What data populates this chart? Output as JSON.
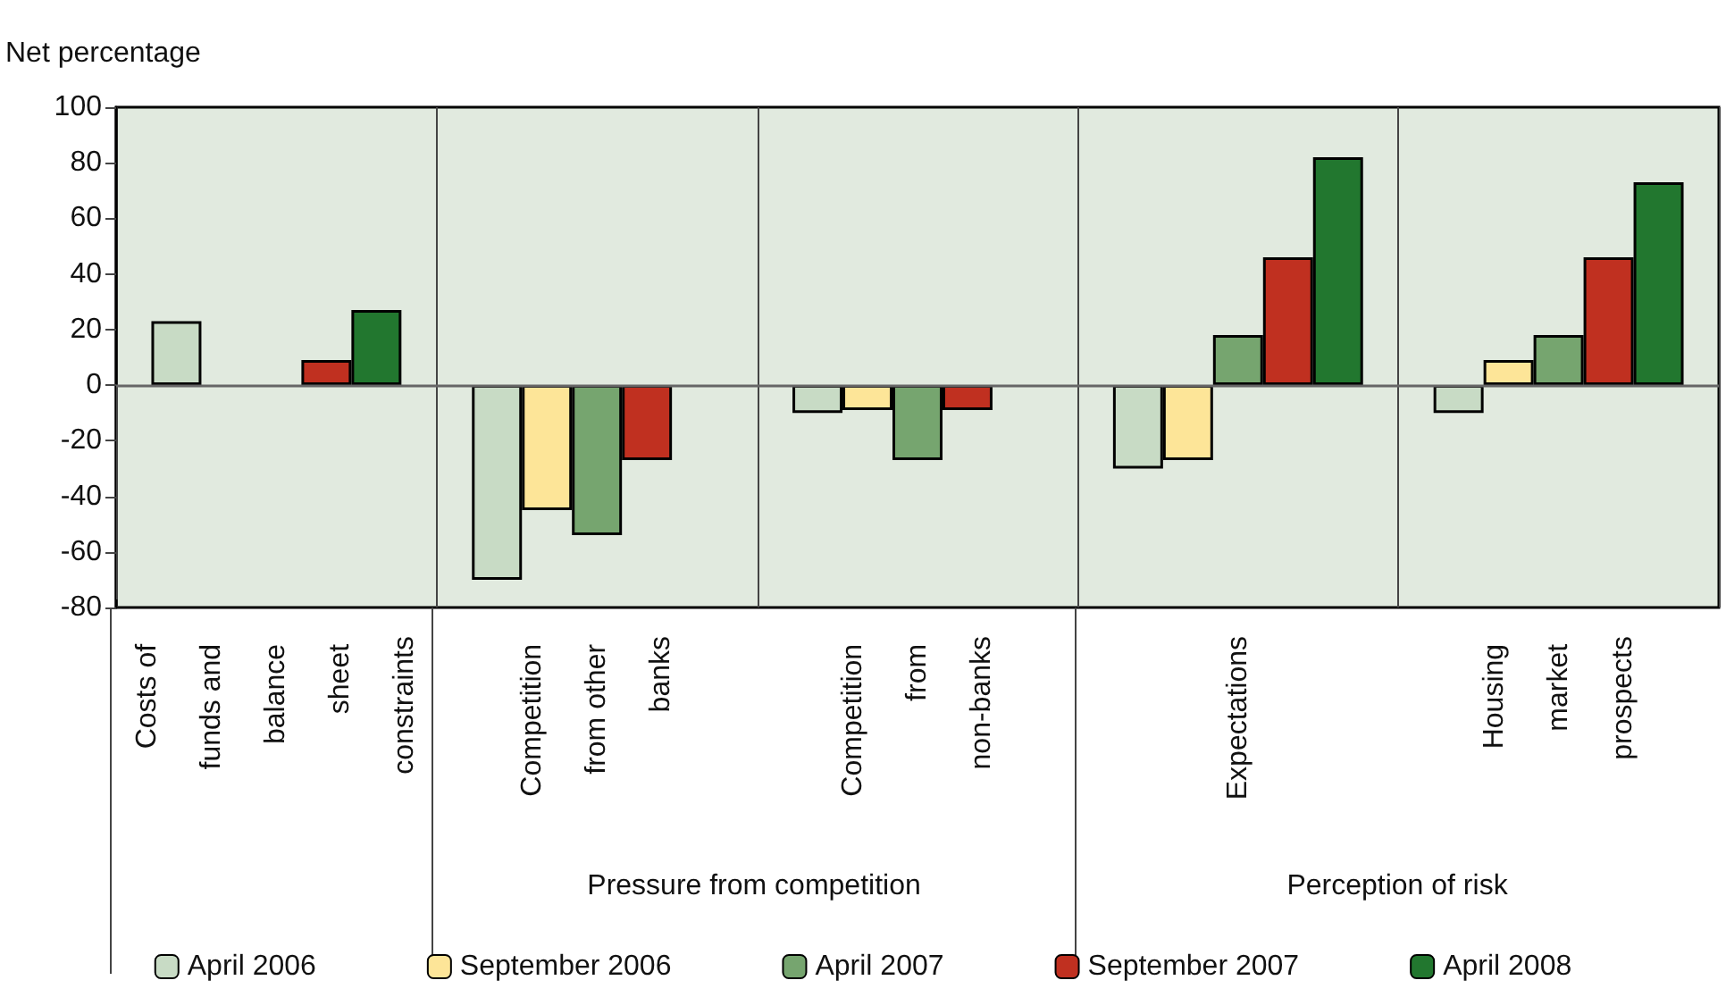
{
  "chart_data": {
    "type": "bar",
    "ylabel": "Net percentage",
    "categories": [
      "Costs of funds and balance sheet constraints",
      "Competition from other banks",
      "Competition from non-banks",
      "Expectations",
      "Housing market prospects"
    ],
    "series": [
      {
        "name": "April 2006",
        "color": "#c8dbc5",
        "values": [
          23,
          -70,
          -10,
          -30,
          -10
        ]
      },
      {
        "name": "September 2006",
        "color": "#fde598",
        "values": [
          null,
          -45,
          -9,
          -27,
          9
        ]
      },
      {
        "name": "April 2007",
        "color": "#76a56f",
        "values": [
          null,
          -54,
          -27,
          18,
          18
        ]
      },
      {
        "name": "September 2007",
        "color": "#c03020",
        "values": [
          9,
          -27,
          -9,
          46,
          46
        ]
      },
      {
        "name": "April 2008",
        "color": "#22772f",
        "values": [
          27,
          null,
          null,
          82,
          73
        ]
      }
    ],
    "ylim": [
      -80,
      100
    ],
    "yticks": [
      -80,
      -60,
      -40,
      -20,
      0,
      20,
      40,
      60,
      80,
      100
    ],
    "grid": "x",
    "legend": "bottom",
    "annotations": [
      "Pressure from competition",
      "Perception of risk"
    ]
  }
}
